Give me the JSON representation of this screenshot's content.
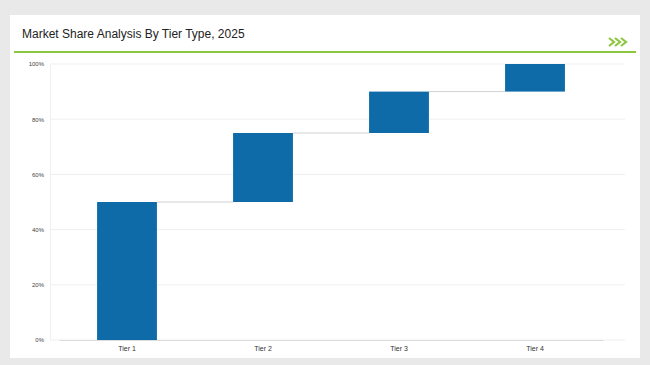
{
  "chart_data": {
    "type": "waterfall",
    "title": "Market Share Analysis By Tier Type, 2025",
    "categories": [
      "Tier 1",
      "Tier 2",
      "Tier 3",
      "Tier 4"
    ],
    "values": [
      50,
      25,
      15,
      10
    ],
    "color": "#0f6aa8",
    "ylim": [
      0,
      100
    ],
    "yticks": [
      {
        "value": 0,
        "label": "0%"
      },
      {
        "value": 20,
        "label": "20%"
      },
      {
        "value": 40,
        "label": "40%"
      },
      {
        "value": 60,
        "label": "60%"
      },
      {
        "value": 80,
        "label": "80%"
      },
      {
        "value": 100,
        "label": "100%"
      }
    ],
    "grid": true
  }
}
